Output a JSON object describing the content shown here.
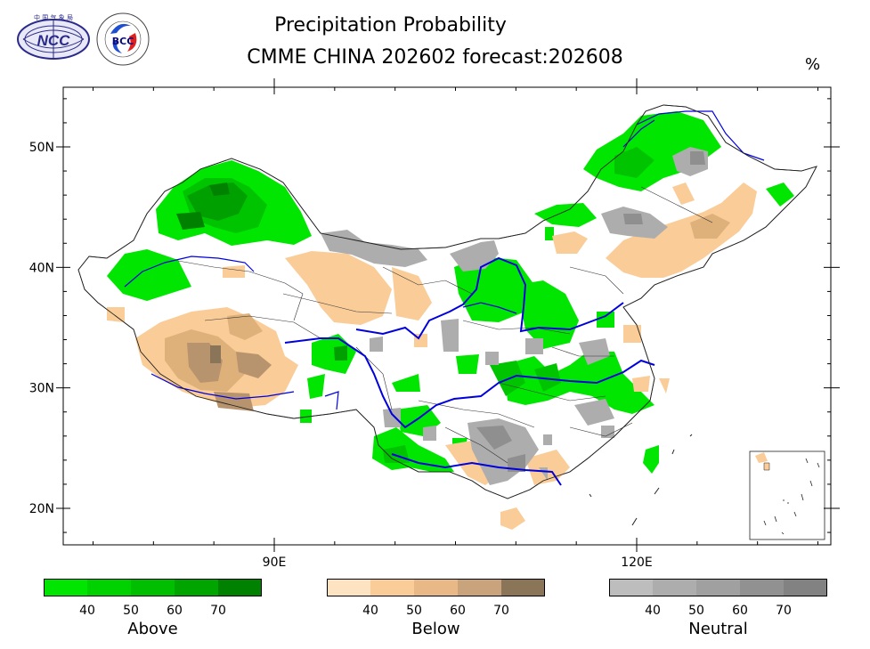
{
  "title_line1": "Precipitation Probability",
  "title_line2": "CMME CHINA 202602 forecast:202608",
  "unit": "%",
  "logos": {
    "ncc_text": "NCC",
    "bcc_text": "BCC"
  },
  "axes": {
    "x_ticks": [
      {
        "label": "90E",
        "lon": 90
      },
      {
        "label": "120E",
        "lon": 120
      }
    ],
    "y_ticks": [
      {
        "label": "50N",
        "lat": 50
      },
      {
        "label": "40N",
        "lat": 40
      },
      {
        "label": "30N",
        "lat": 30
      },
      {
        "label": "20N",
        "lat": 20
      }
    ],
    "lon_range": [
      72,
      136
    ],
    "lat_range": [
      17,
      55
    ]
  },
  "legends": [
    {
      "title": "Above",
      "ticks": [
        "40",
        "50",
        "60",
        "70"
      ],
      "colors": [
        "#00e600",
        "#00d200",
        "#00be00",
        "#00a500",
        "#008200"
      ]
    },
    {
      "title": "Below",
      "ticks": [
        "40",
        "50",
        "60",
        "70"
      ],
      "colors": [
        "#fde3c2",
        "#f9cc98",
        "#e8b987",
        "#c9a37b",
        "#8b7558"
      ]
    },
    {
      "title": "Neutral",
      "ticks": [
        "40",
        "50",
        "60",
        "70"
      ],
      "colors": [
        "#bdbdbd",
        "#adadad",
        "#a0a0a0",
        "#919191",
        "#828282"
      ]
    }
  ],
  "colors": {
    "river": "#0000dd",
    "border": "#222222"
  }
}
